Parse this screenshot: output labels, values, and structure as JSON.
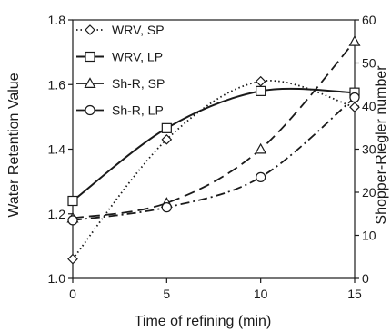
{
  "chart_data": {
    "type": "line",
    "title": "",
    "xlabel": "Time of refining (min)",
    "ylabel_left": "Water Retention Value",
    "ylabel_right": "Shopper-Riegler number",
    "x_ticks": [
      "0",
      "5",
      "10",
      "15"
    ],
    "y_left_ticks": [
      "1.0",
      "1.2",
      "1.4",
      "1.6",
      "1.8"
    ],
    "y_right_ticks": [
      "0",
      "10",
      "20",
      "30",
      "40",
      "50",
      "60"
    ],
    "xlim": [
      0,
      15
    ],
    "ylim_left": [
      1.0,
      1.8
    ],
    "ylim_right": [
      0,
      60
    ],
    "grid": false,
    "legend_position": "top-left",
    "x": [
      0,
      5,
      10,
      15
    ],
    "series": [
      {
        "name": "WRV, SP",
        "axis": "left",
        "marker": "diamond",
        "line": "dotted",
        "values": [
          1.06,
          1.43,
          1.61,
          1.53
        ]
      },
      {
        "name": "WRV, LP",
        "axis": "left",
        "marker": "square",
        "line": "solid",
        "values": [
          1.24,
          1.465,
          1.58,
          1.575
        ]
      },
      {
        "name": "Sh-R, SP",
        "axis": "right",
        "marker": "triangle",
        "line": "dashed",
        "values": [
          14,
          17.5,
          30,
          55
        ]
      },
      {
        "name": "Sh-R, LP",
        "axis": "right",
        "marker": "circle",
        "line": "dashdot",
        "values": [
          13.5,
          16.5,
          23.5,
          42
        ]
      }
    ]
  }
}
